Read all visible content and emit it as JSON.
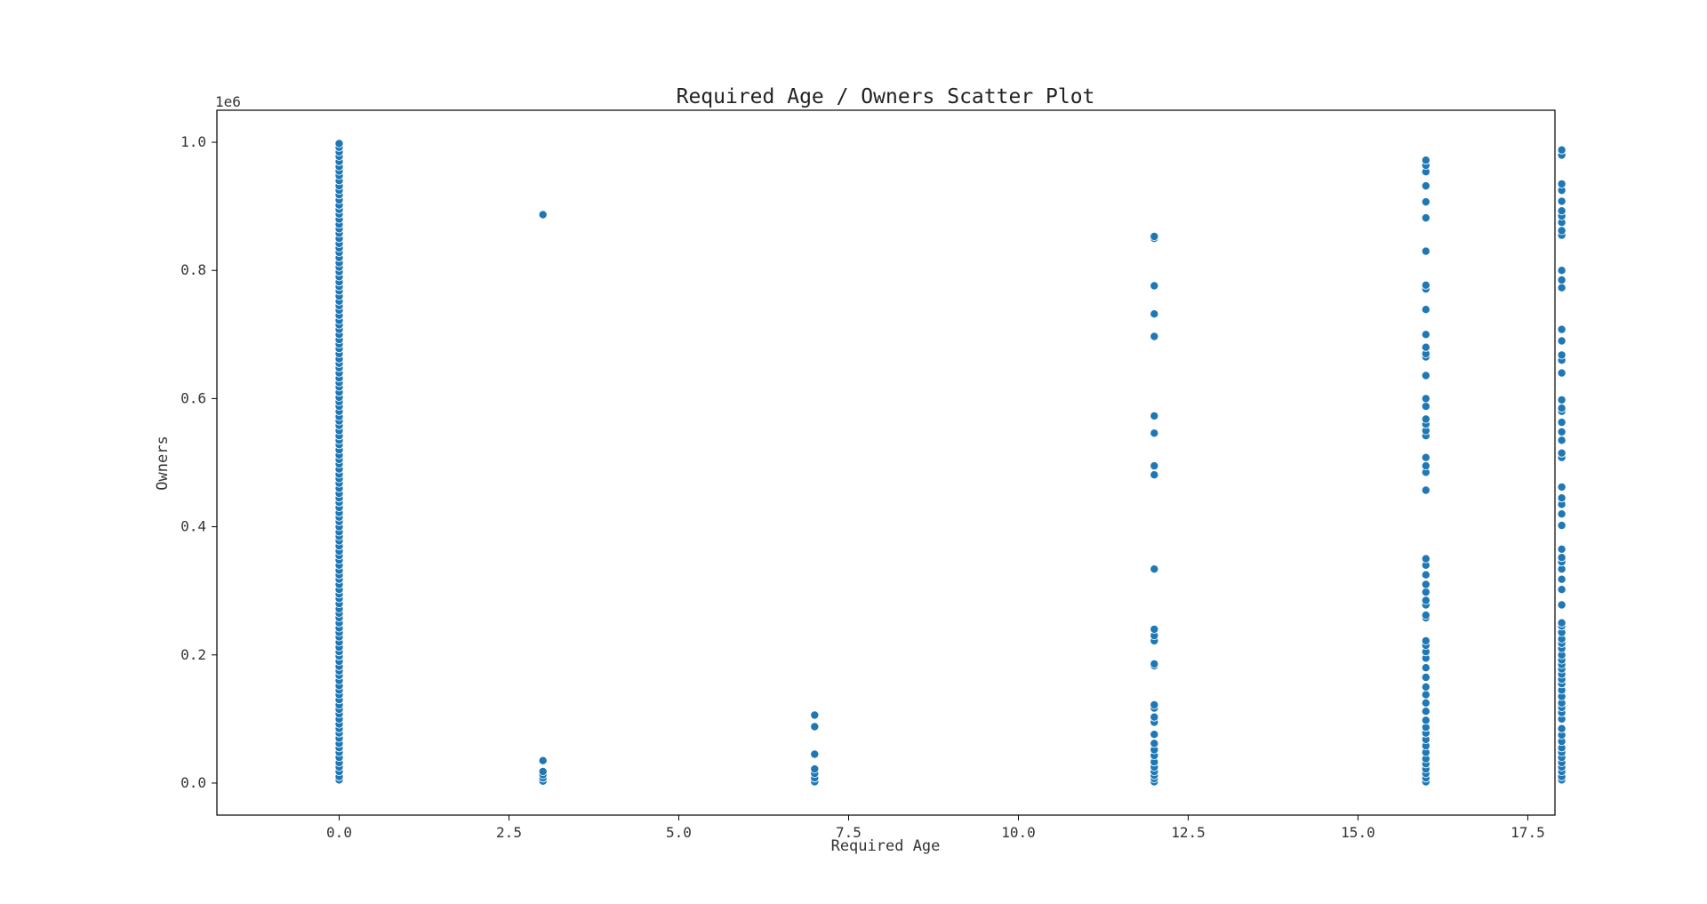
{
  "chart_data": {
    "type": "scatter",
    "title": "Required Age / Owners Scatter Plot",
    "xlabel": "Required Age",
    "ylabel": "Owners",
    "y_offset_label": "1e6",
    "xlim": [
      -1.8,
      17.9
    ],
    "ylim": [
      -0.05,
      1.05
    ],
    "x_ticks": [
      0.0,
      2.5,
      5.0,
      7.5,
      10.0,
      12.5,
      15.0,
      17.5
    ],
    "x_tick_labels": [
      "0.0",
      "2.5",
      "5.0",
      "7.5",
      "10.0",
      "12.5",
      "15.0",
      "17.5"
    ],
    "y_ticks": [
      0.0,
      0.2,
      0.4,
      0.6,
      0.8,
      1.0
    ],
    "y_tick_labels": [
      "0.0",
      "0.2",
      "0.4",
      "0.6",
      "0.8",
      "1.0"
    ],
    "grid": false,
    "legend": "none",
    "marker_color": "#1f77b4",
    "groups": [
      {
        "x": 0,
        "y": [
          0.005,
          0.01,
          0.018,
          0.025,
          0.032,
          0.04,
          0.048,
          0.055,
          0.062,
          0.07,
          0.078,
          0.085,
          0.092,
          0.1,
          0.108,
          0.115,
          0.122,
          0.13,
          0.138,
          0.145,
          0.152,
          0.16,
          0.168,
          0.175,
          0.182,
          0.19,
          0.198,
          0.205,
          0.212,
          0.22,
          0.228,
          0.235,
          0.242,
          0.25,
          0.258,
          0.265,
          0.272,
          0.28,
          0.288,
          0.295,
          0.302,
          0.31,
          0.318,
          0.325,
          0.332,
          0.34,
          0.348,
          0.355,
          0.362,
          0.37,
          0.378,
          0.385,
          0.392,
          0.4,
          0.408,
          0.415,
          0.422,
          0.43,
          0.438,
          0.445,
          0.452,
          0.46,
          0.468,
          0.475,
          0.482,
          0.49,
          0.498,
          0.505,
          0.512,
          0.52,
          0.528,
          0.535,
          0.542,
          0.55,
          0.558,
          0.565,
          0.572,
          0.58,
          0.588,
          0.595,
          0.602,
          0.61,
          0.618,
          0.625,
          0.632,
          0.64,
          0.648,
          0.655,
          0.662,
          0.67,
          0.678,
          0.685,
          0.692,
          0.7,
          0.708,
          0.715,
          0.722,
          0.73,
          0.738,
          0.745,
          0.752,
          0.76,
          0.768,
          0.775,
          0.782,
          0.79,
          0.798,
          0.805,
          0.812,
          0.82,
          0.828,
          0.835,
          0.842,
          0.85,
          0.858,
          0.865,
          0.872,
          0.88,
          0.888,
          0.895,
          0.902,
          0.91,
          0.918,
          0.925,
          0.932,
          0.94,
          0.948,
          0.955,
          0.962,
          0.97,
          0.978,
          0.985,
          0.992,
          0.998
        ]
      },
      {
        "x": 3,
        "y": [
          0.003,
          0.008,
          0.013,
          0.018,
          0.035,
          0.887
        ]
      },
      {
        "x": 7,
        "y": [
          0.002,
          0.008,
          0.015,
          0.022,
          0.045,
          0.088,
          0.106
        ]
      },
      {
        "x": 12,
        "y": [
          0.002,
          0.007,
          0.012,
          0.018,
          0.025,
          0.033,
          0.043,
          0.052,
          0.062,
          0.076,
          0.095,
          0.103,
          0.117,
          0.122,
          0.183,
          0.186,
          0.222,
          0.23,
          0.24,
          0.334,
          0.481,
          0.495,
          0.546,
          0.573,
          0.697,
          0.732,
          0.776,
          0.85,
          0.853
        ]
      },
      {
        "x": 16,
        "y": [
          0.002,
          0.008,
          0.015,
          0.022,
          0.03,
          0.038,
          0.048,
          0.058,
          0.068,
          0.078,
          0.087,
          0.098,
          0.112,
          0.125,
          0.138,
          0.15,
          0.165,
          0.18,
          0.195,
          0.205,
          0.215,
          0.222,
          0.258,
          0.262,
          0.278,
          0.285,
          0.298,
          0.31,
          0.325,
          0.34,
          0.35,
          0.457,
          0.485,
          0.495,
          0.508,
          0.542,
          0.55,
          0.56,
          0.568,
          0.588,
          0.6,
          0.636,
          0.665,
          0.67,
          0.68,
          0.7,
          0.739,
          0.771,
          0.777,
          0.83,
          0.882,
          0.907,
          0.932,
          0.954,
          0.964,
          0.972
        ]
      },
      {
        "x": 18,
        "y": [
          0.005,
          0.01,
          0.018,
          0.025,
          0.032,
          0.04,
          0.048,
          0.055,
          0.065,
          0.075,
          0.085,
          0.1,
          0.11,
          0.118,
          0.125,
          0.135,
          0.145,
          0.155,
          0.162,
          0.17,
          0.178,
          0.185,
          0.192,
          0.2,
          0.21,
          0.218,
          0.225,
          0.235,
          0.245,
          0.25,
          0.278,
          0.302,
          0.318,
          0.334,
          0.345,
          0.352,
          0.365,
          0.402,
          0.42,
          0.435,
          0.445,
          0.462,
          0.508,
          0.515,
          0.535,
          0.548,
          0.563,
          0.58,
          0.585,
          0.598,
          0.64,
          0.66,
          0.668,
          0.69,
          0.708,
          0.773,
          0.785,
          0.8,
          0.855,
          0.862,
          0.875,
          0.885,
          0.893,
          0.908,
          0.925,
          0.935,
          0.98,
          0.988
        ]
      }
    ]
  }
}
